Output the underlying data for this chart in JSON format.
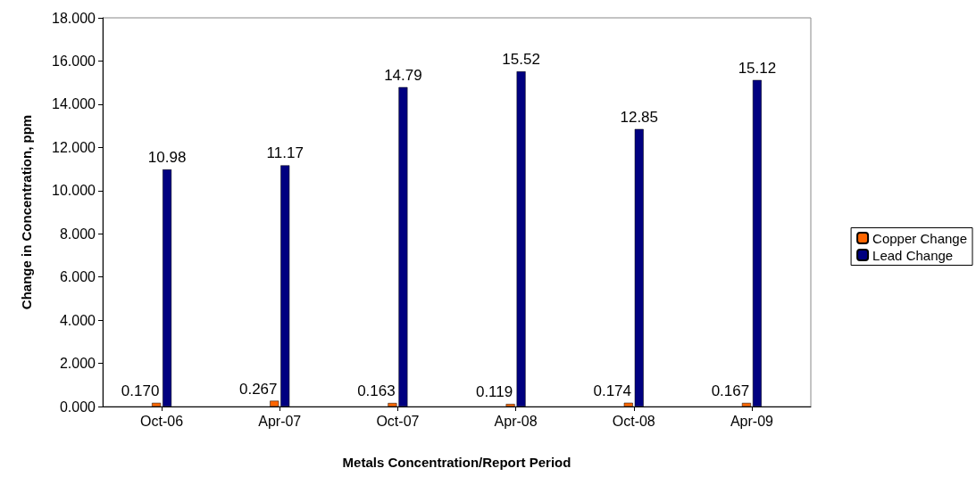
{
  "chart_data": {
    "type": "bar",
    "xlabel": "Metals Concentration/Report Period",
    "ylabel": "Change in Concentration, ppm",
    "categories": [
      "Oct-06",
      "Apr-07",
      "Oct-07",
      "Apr-08",
      "Oct-08",
      "Apr-09"
    ],
    "series": [
      {
        "name": "Copper Change",
        "color": "#ff6600",
        "values": [
          0.17,
          0.267,
          0.163,
          0.119,
          0.174,
          0.167
        ],
        "value_labels": [
          "0.170",
          "0.267",
          "0.163",
          "0.119",
          "0.174",
          "0.167"
        ]
      },
      {
        "name": "Lead Change",
        "color": "#000080",
        "values": [
          10.98,
          11.17,
          14.79,
          15.52,
          12.85,
          15.12
        ],
        "value_labels": [
          "10.98",
          "11.17",
          "14.79",
          "15.52",
          "12.85",
          "15.12"
        ]
      }
    ],
    "ylim": [
      0,
      18
    ],
    "yticks": [
      {
        "value": 0,
        "label": "0.000"
      },
      {
        "value": 2,
        "label": "2.000"
      },
      {
        "value": 4,
        "label": "4.000"
      },
      {
        "value": 6,
        "label": "6.000"
      },
      {
        "value": 8,
        "label": "8.000"
      },
      {
        "value": 10,
        "label": "10.000"
      },
      {
        "value": 12,
        "label": "12.000"
      },
      {
        "value": 14,
        "label": "14.000"
      },
      {
        "value": 16,
        "label": "16.000"
      },
      {
        "value": 18,
        "label": "18.000"
      }
    ],
    "grid": false,
    "legend": "right"
  }
}
